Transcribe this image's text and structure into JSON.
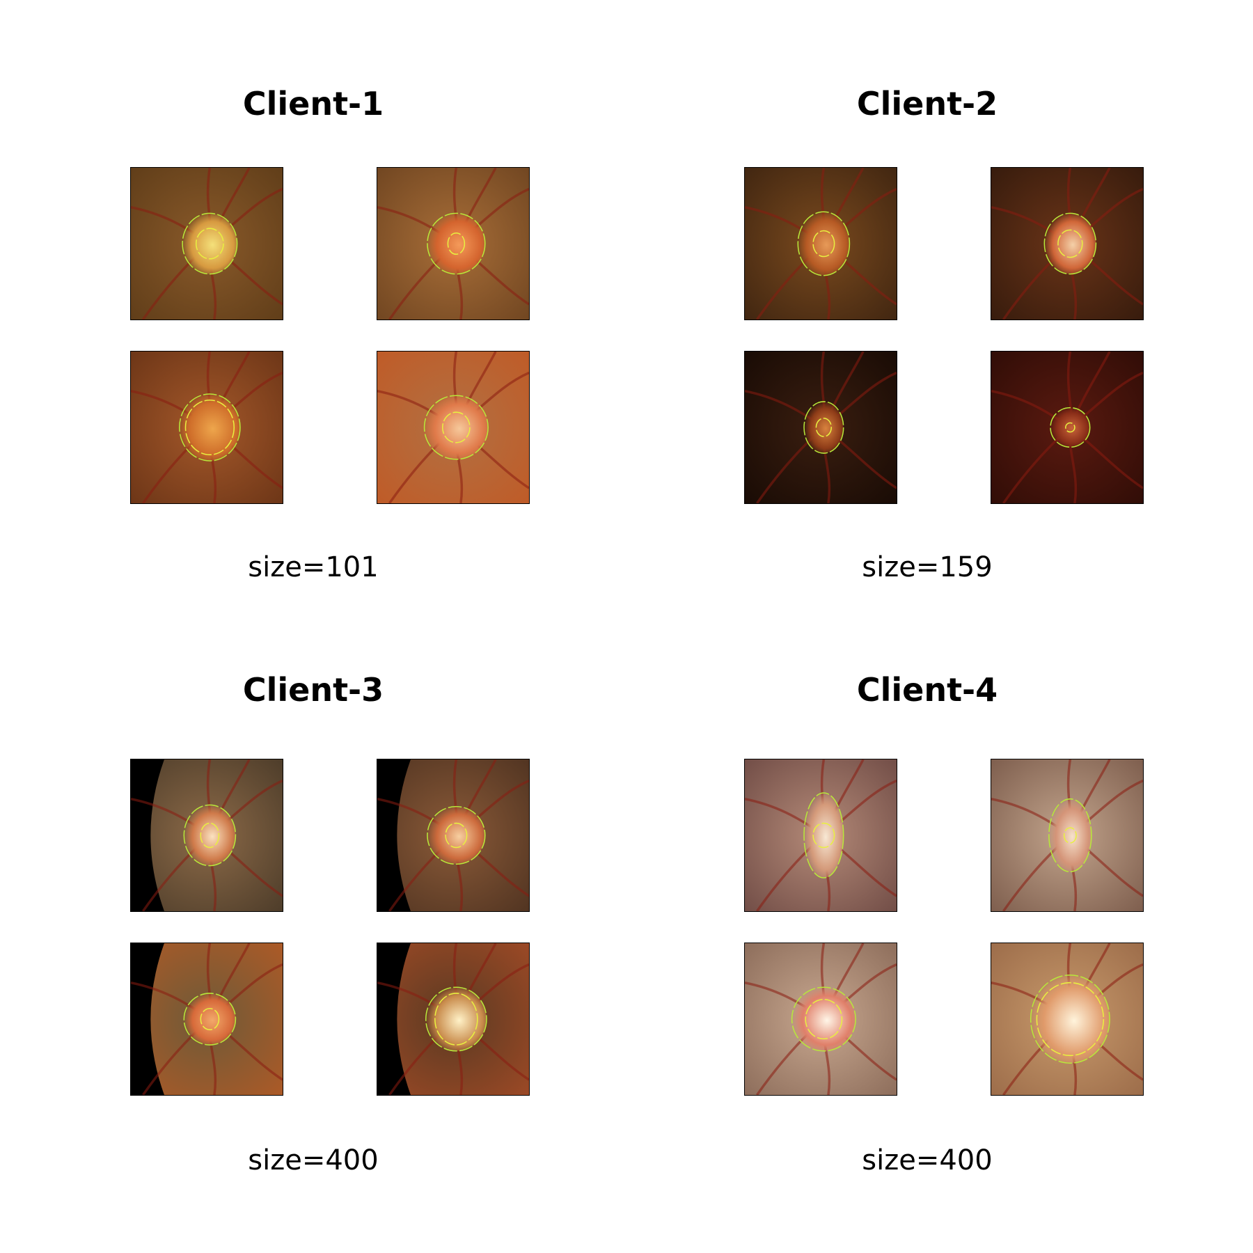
{
  "clients": [
    {
      "title": "Client-1",
      "size_label": "size=101",
      "images": [
        {
          "kind": "fundus-crop",
          "bg": [
            "#8a5a2a",
            "#5e3c18"
          ],
          "disc_center": "#f4e07a",
          "disc_edge": "#d79a40",
          "cup_rx": 0.18,
          "cup_ry": 0.2,
          "disc_rx": 0.36,
          "disc_ry": 0.4,
          "has_black_edge": false
        },
        {
          "kind": "fundus-crop",
          "bg": [
            "#a86e38",
            "#6e4420"
          ],
          "disc_center": "#f49a5a",
          "disc_edge": "#d4642e",
          "cup_rx": 0.11,
          "cup_ry": 0.14,
          "disc_rx": 0.38,
          "disc_ry": 0.4,
          "has_black_edge": false
        },
        {
          "kind": "fundus-crop",
          "bg": [
            "#a4582a",
            "#6a3416"
          ],
          "disc_center": "#eea64c",
          "disc_edge": "#cf6e2a",
          "cup_rx": 0.32,
          "cup_ry": 0.36,
          "disc_rx": 0.4,
          "disc_ry": 0.44,
          "has_black_edge": false
        },
        {
          "kind": "fundus-crop",
          "bg": [
            "#b27042",
            "#c05a26"
          ],
          "disc_center": "#f6c89a",
          "disc_edge": "#e07a4a",
          "cup_rx": 0.18,
          "cup_ry": 0.2,
          "disc_rx": 0.42,
          "disc_ry": 0.42,
          "has_black_edge": false
        }
      ]
    },
    {
      "title": "Client-2",
      "size_label": "size=159",
      "images": [
        {
          "kind": "fundus-crop",
          "bg": [
            "#7a4a1e",
            "#3e2410"
          ],
          "disc_center": "#e79a58",
          "disc_edge": "#b65a24",
          "cup_rx": 0.14,
          "cup_ry": 0.17,
          "disc_rx": 0.34,
          "disc_ry": 0.42,
          "has_black_edge": false
        },
        {
          "kind": "fundus-crop",
          "bg": [
            "#6a3418",
            "#341a0c"
          ],
          "disc_center": "#f4d0a8",
          "disc_edge": "#d06638",
          "cup_rx": 0.16,
          "cup_ry": 0.18,
          "disc_rx": 0.34,
          "disc_ry": 0.4,
          "has_black_edge": false
        },
        {
          "kind": "fundus-crop",
          "bg": [
            "#3a1e10",
            "#170a04"
          ],
          "disc_center": "#d8823e",
          "disc_edge": "#8e3c18",
          "cup_rx": 0.1,
          "cup_ry": 0.12,
          "disc_rx": 0.26,
          "disc_ry": 0.34,
          "has_black_edge": false
        },
        {
          "kind": "fundus-crop",
          "bg": [
            "#5a1a10",
            "#2e0c06"
          ],
          "disc_center": "#c8643a",
          "disc_edge": "#8a2e18",
          "cup_rx": 0.06,
          "cup_ry": 0.06,
          "disc_rx": 0.26,
          "disc_ry": 0.26,
          "has_black_edge": false
        }
      ]
    },
    {
      "title": "Client-3",
      "size_label": "size=400",
      "images": [
        {
          "kind": "fundus-crop",
          "bg": [
            "#8c6a48",
            "#4a3a28"
          ],
          "disc_center": "#fbe2c0",
          "disc_edge": "#cf7a4a",
          "cup_rx": 0.12,
          "cup_ry": 0.16,
          "disc_rx": 0.34,
          "disc_ry": 0.4,
          "has_black_edge": true
        },
        {
          "kind": "fundus-crop",
          "bg": [
            "#8a5a38",
            "#4e3220"
          ],
          "disc_center": "#f7cfa0",
          "disc_edge": "#cc6a3c",
          "cup_rx": 0.14,
          "cup_ry": 0.16,
          "disc_rx": 0.38,
          "disc_ry": 0.38,
          "has_black_edge": true
        },
        {
          "kind": "fundus-crop",
          "bg": [
            "#6e5a38",
            "#b05a26"
          ],
          "disc_center": "#f2a86a",
          "disc_edge": "#d76a3a",
          "cup_rx": 0.12,
          "cup_ry": 0.14,
          "disc_rx": 0.34,
          "disc_ry": 0.34,
          "has_black_edge": true
        },
        {
          "kind": "fundus-crop",
          "bg": [
            "#5a3a22",
            "#a04a26"
          ],
          "disc_center": "#fff2c8",
          "disc_edge": "#c88a4a",
          "cup_rx": 0.28,
          "cup_ry": 0.34,
          "disc_rx": 0.4,
          "disc_ry": 0.42,
          "has_black_edge": true
        }
      ]
    },
    {
      "title": "Client-4",
      "size_label": "size=400",
      "images": [
        {
          "kind": "fundus-crop",
          "bg": [
            "#b48a78",
            "#6e4a44"
          ],
          "disc_center": "#f8e8d4",
          "disc_edge": "#d49a7a",
          "cup_rx": 0.14,
          "cup_ry": 0.16,
          "disc_rx": 0.26,
          "disc_ry": 0.56,
          "has_black_edge": false
        },
        {
          "kind": "fundus-crop",
          "bg": [
            "#c2a48c",
            "#7a5a4a"
          ],
          "disc_center": "#f6e2cc",
          "disc_edge": "#d49478",
          "cup_rx": 0.08,
          "cup_ry": 0.1,
          "disc_rx": 0.28,
          "disc_ry": 0.48,
          "has_black_edge": false
        },
        {
          "kind": "fundus-crop",
          "bg": [
            "#c8a890",
            "#8a6a58"
          ],
          "disc_center": "#fff6e8",
          "disc_edge": "#e0806a",
          "cup_rx": 0.24,
          "cup_ry": 0.26,
          "disc_rx": 0.42,
          "disc_ry": 0.42,
          "has_black_edge": false
        },
        {
          "kind": "fundus-crop",
          "bg": [
            "#c89a6c",
            "#9a6a48"
          ],
          "disc_center": "#fff4dc",
          "disc_edge": "#e09a6a",
          "cup_rx": 0.44,
          "cup_ry": 0.48,
          "disc_rx": 0.52,
          "disc_ry": 0.58,
          "has_black_edge": false
        }
      ]
    }
  ],
  "contour_colors": {
    "disc": "#b8e83a",
    "cup": "#e8f040"
  }
}
